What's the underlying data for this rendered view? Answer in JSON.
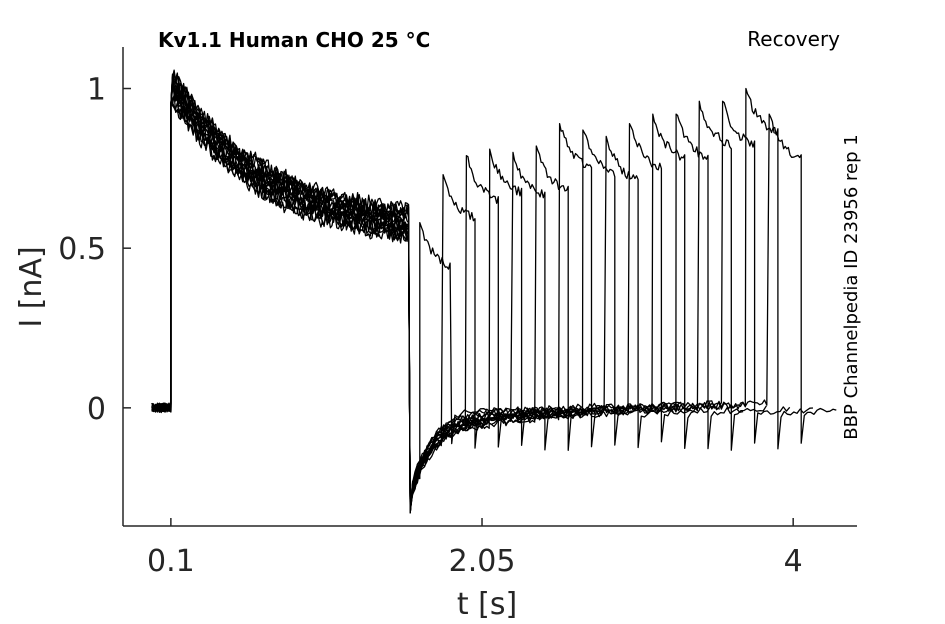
{
  "chart_data": {
    "type": "line",
    "title": "Kv1.1  Human  CHO  25 °C",
    "protocol": "Recovery",
    "side_label": "BBP Channelpedia ID 23956 rep 1",
    "xlabel": "t [s]",
    "ylabel": "I [nA]",
    "xlim": [
      -0.2,
      4.4
    ],
    "ylim": [
      -0.37,
      1.13
    ],
    "xticks": [
      0.1,
      2.05,
      4
    ],
    "xtick_labels": [
      "0.1",
      "2.05",
      "4"
    ],
    "yticks": [
      0,
      0.5,
      1
    ],
    "ytick_labels": [
      "0",
      "0.5",
      "1"
    ],
    "grid": false,
    "color": "#000000",
    "sweeps": {
      "count": 16,
      "baseline_start": -0.02,
      "step_on": 0.1,
      "peak": 1.0,
      "sustained_end": 0.55,
      "step_off": 1.6,
      "first_gap_end": 1.66,
      "gap_increment": 0.146,
      "test_pulse_duration": 0.2,
      "test_peaks": [
        0.58,
        0.73,
        0.79,
        0.81,
        0.8,
        0.82,
        0.89,
        0.87,
        0.85,
        0.89,
        0.92,
        0.92,
        0.96,
        0.96,
        1.0,
        0.92
      ],
      "tail_min": -0.33,
      "end_current": 0.0
    }
  }
}
